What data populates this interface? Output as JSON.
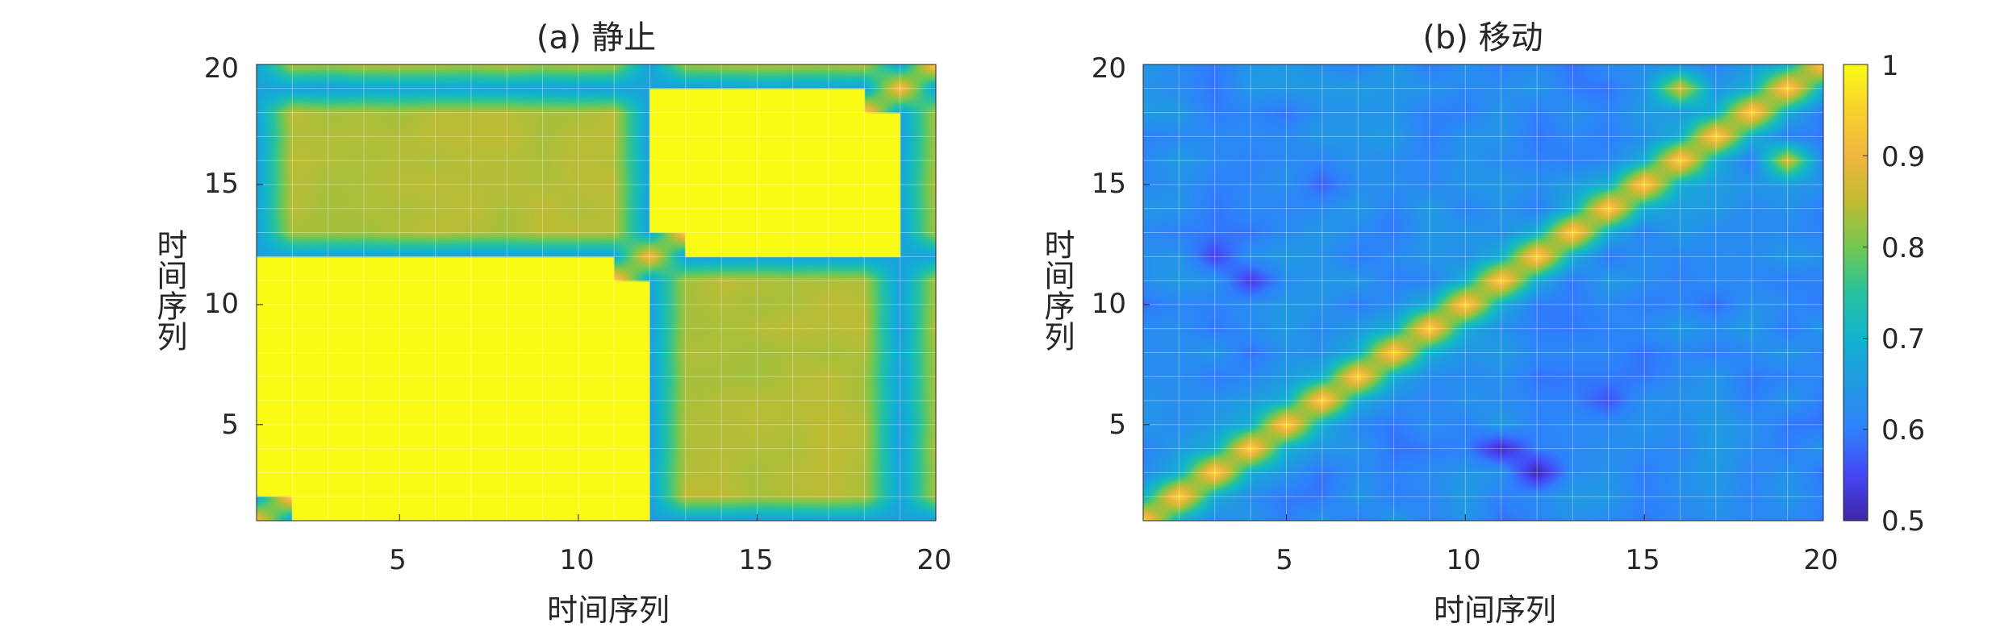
{
  "chart_data": [
    {
      "type": "heatmap",
      "title": "(a) 静止",
      "xlabel": "时间序列",
      "ylabel": "时间序列",
      "xlim": [
        1,
        20
      ],
      "ylim": [
        1,
        20
      ],
      "x_ticks": [
        "5",
        "10",
        "15",
        "20"
      ],
      "y_ticks": [
        "5",
        "10",
        "15",
        "20"
      ],
      "grid": true,
      "shading": "interp",
      "x": [
        1,
        2,
        3,
        4,
        5,
        6,
        7,
        8,
        9,
        10,
        11,
        12,
        13,
        14,
        15,
        16,
        17,
        18,
        19,
        20
      ],
      "y": [
        1,
        2,
        3,
        4,
        5,
        6,
        7,
        8,
        9,
        10,
        11,
        12,
        13,
        14,
        15,
        16,
        17,
        18,
        19,
        20
      ],
      "blocks": [
        {
          "from": 1,
          "to": 11,
          "diagonal": 0.97,
          "within": 0.86
        },
        {
          "from": 13,
          "to": 18,
          "diagonal": 0.97,
          "within": 0.86
        }
      ],
      "between_blocks": 0.84,
      "separator_indices": [
        1,
        12,
        19
      ],
      "separator_value": 0.66,
      "separator_diagonal": 0.93,
      "corner_block": {
        "from": 19,
        "to": 20,
        "value": 0.96
      }
    },
    {
      "type": "heatmap",
      "title": "(b) 移动",
      "xlabel": "时间序列",
      "ylabel": "时间序列",
      "xlim": [
        1,
        20
      ],
      "ylim": [
        1,
        20
      ],
      "x_ticks": [
        "5",
        "10",
        "15",
        "20"
      ],
      "y_ticks": [
        "5",
        "10",
        "15",
        "20"
      ],
      "grid": true,
      "shading": "interp",
      "diagonal": 0.97,
      "off_diagonal_base": 0.62,
      "near_diagonal": 0.69,
      "hot_spots": [
        {
          "i": 16,
          "j": 19,
          "value": 0.88
        },
        {
          "i": 19,
          "j": 16,
          "value": 0.88
        }
      ],
      "low_spots": [
        {
          "i": 3,
          "j": 12,
          "value": 0.5
        },
        {
          "i": 4,
          "j": 11,
          "value": 0.51
        },
        {
          "i": 11,
          "j": 4,
          "value": 0.53
        },
        {
          "i": 12,
          "j": 3,
          "value": 0.54
        },
        {
          "i": 6,
          "j": 14,
          "value": 0.56
        },
        {
          "i": 15,
          "j": 6,
          "value": 0.57
        },
        {
          "i": 10,
          "j": 17,
          "value": 0.58
        }
      ],
      "colorbar": {
        "min": 0.5,
        "max": 1,
        "ticks": [
          "0.5",
          "0.6",
          "0.7",
          "0.8",
          "0.9",
          "1"
        ]
      }
    }
  ]
}
